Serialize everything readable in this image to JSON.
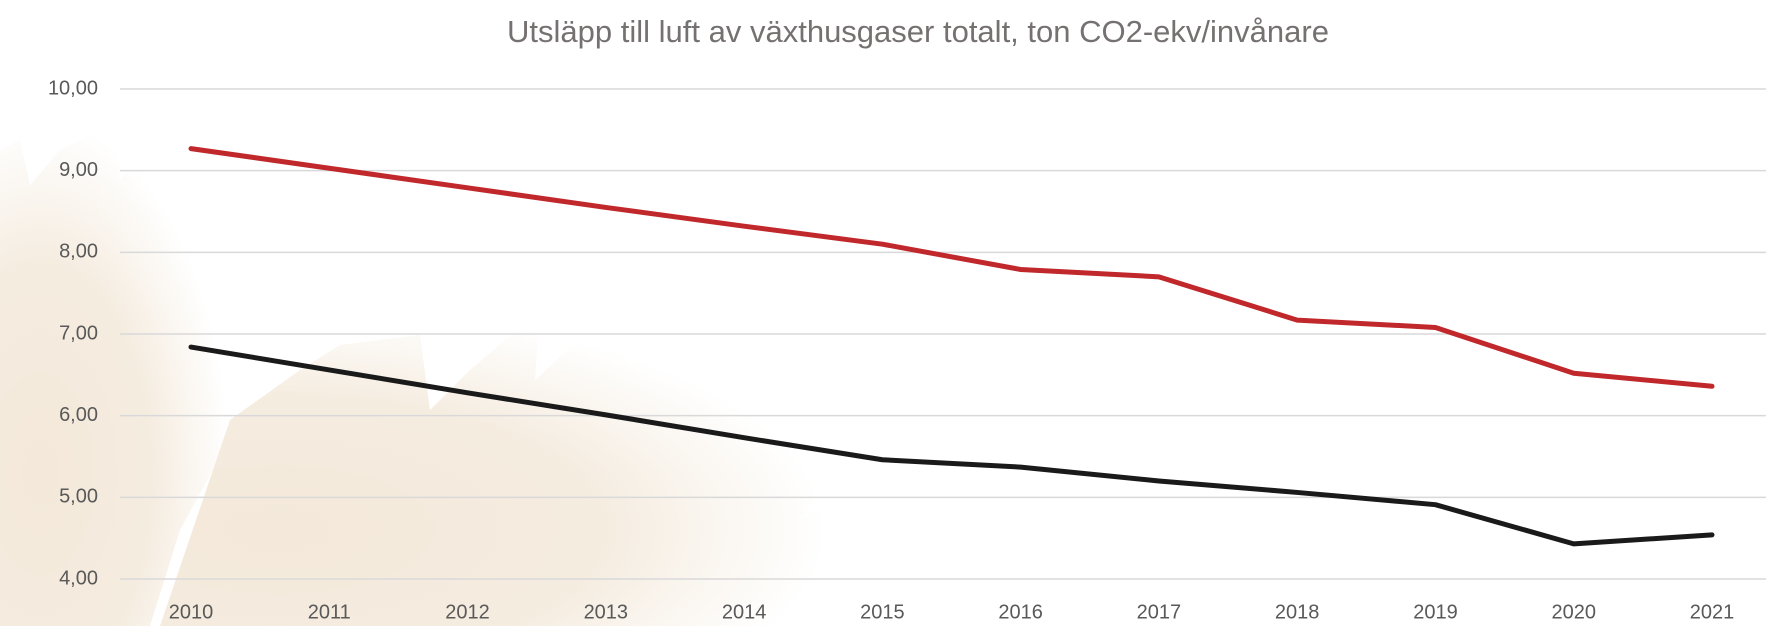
{
  "chart_data": {
    "type": "line",
    "title": "Utsläpp till luft av växthusgaser totalt, ton CO2-ekv/invånare",
    "categories": [
      "2010",
      "2011",
      "2012",
      "2013",
      "2014",
      "2015",
      "2016",
      "2017",
      "2018",
      "2019",
      "2020",
      "2021"
    ],
    "series": [
      {
        "color": "#c0282b",
        "values": [
          9.27,
          9.03,
          8.79,
          8.55,
          8.32,
          8.1,
          7.79,
          7.7,
          7.17,
          7.08,
          6.52,
          6.36
        ]
      },
      {
        "color": "#1a1a1a",
        "values": [
          6.84,
          6.56,
          6.28,
          6.01,
          5.73,
          5.46,
          5.37,
          5.2,
          5.06,
          4.91,
          4.43,
          4.54
        ]
      }
    ],
    "ylim": [
      4,
      10
    ],
    "yticks": [
      {
        "value": 4,
        "label": "4,00"
      },
      {
        "value": 5,
        "label": "5,00"
      },
      {
        "value": 6,
        "label": "6,00"
      },
      {
        "value": 7,
        "label": "7,00"
      },
      {
        "value": 8,
        "label": "8,00"
      },
      {
        "value": 9,
        "label": "9,00"
      },
      {
        "value": 10,
        "label": "10,00"
      }
    ],
    "grid": true
  }
}
